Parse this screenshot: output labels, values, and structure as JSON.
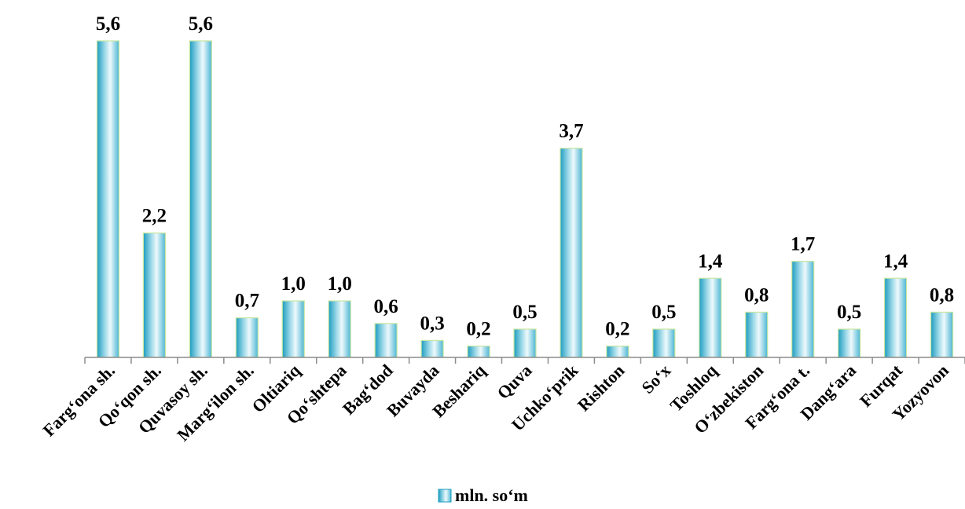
{
  "chart_data": {
    "type": "bar",
    "categories": [
      "Farg‘ona sh.",
      "Qo‘qon sh.",
      "Quvasoy sh.",
      "Marg‘ilon sh.",
      "Oltiariq",
      "Qo‘shtepa",
      "Bag‘dod",
      "Buvayda",
      "Beshariq",
      "Quva",
      "Uchko‘prik",
      "Rishton",
      "So‘x",
      "Toshloq",
      "O‘zbekiston",
      "Farg‘ona t.",
      "Dang‘ara",
      "Furqat",
      "Yozyovon"
    ],
    "series": [
      {
        "name": "mln. so‘m",
        "values": [
          5.6,
          2.2,
          5.6,
          0.7,
          1.0,
          1.0,
          0.6,
          0.3,
          0.2,
          0.5,
          3.7,
          0.2,
          0.5,
          1.4,
          0.8,
          1.7,
          0.5,
          1.4,
          0.8
        ],
        "labels": [
          "5,6",
          "2,2",
          "5,6",
          "0,7",
          "1,0",
          "1,0",
          "0,6",
          "0,3",
          "0,2",
          "0,5",
          "3,7",
          "0,2",
          "0,5",
          "1,4",
          "0,8",
          "1,7",
          "0,5",
          "1,4",
          "0,8"
        ]
      }
    ],
    "ylim": [
      0,
      5.6
    ],
    "grid": false,
    "legend_position": "bottom",
    "colors": {
      "bar_light": "#eef9fc",
      "bar_mid": "#9ad8e8",
      "bar_dark": "#1e9cc0",
      "bar_border": "#c8e6a0",
      "axis": "#8c8c8c"
    }
  }
}
